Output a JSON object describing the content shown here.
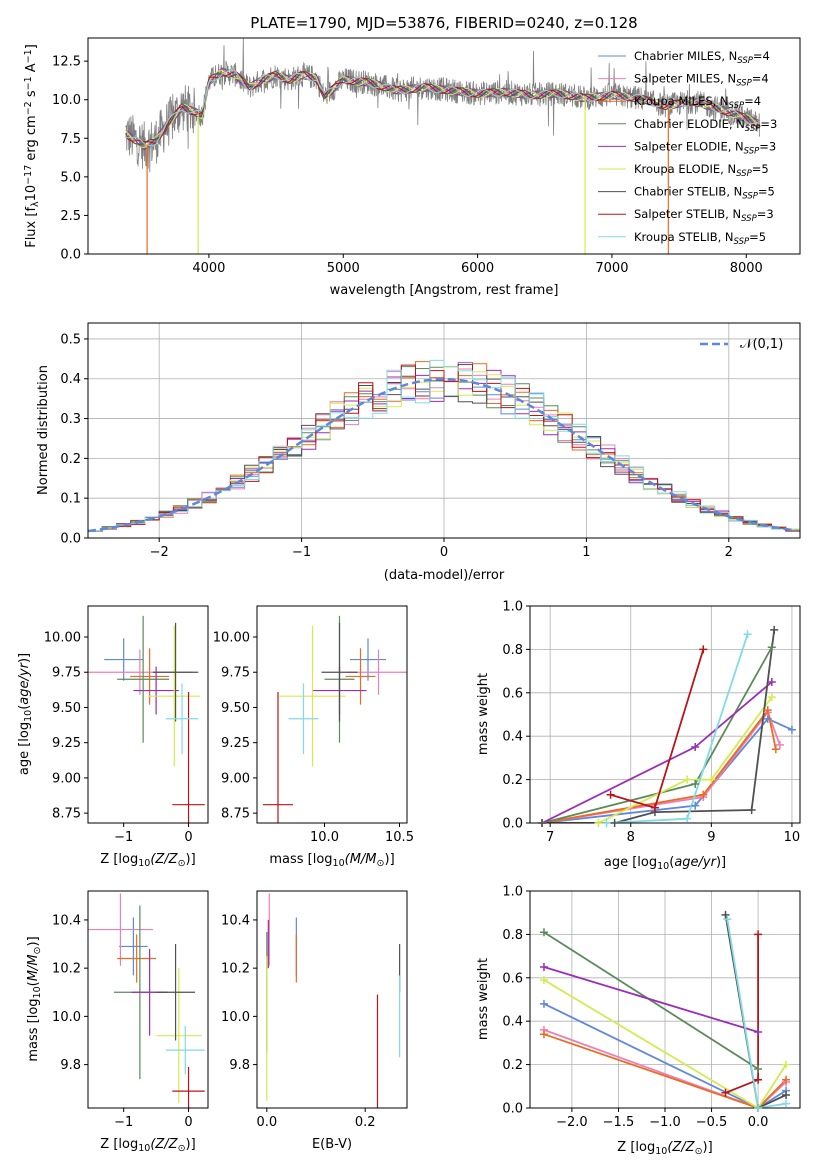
{
  "colors": {
    "chabrier_miles": "#5f87db",
    "salpeter_miles": "#ec7fb4",
    "kroupa_miles": "#ec6b22",
    "chabrier_elodie": "#5b8a5b",
    "salpeter_elodie": "#9b2db8",
    "kroupa_elodie": "#d4ea4f",
    "chabrier_stelib": "#505050",
    "salpeter_stelib": "#b8141a",
    "kroupa_stelib": "#80dbe4",
    "data": "#808080",
    "gauss": "#5f87db"
  },
  "chart_data": [
    {
      "id": "spectrum",
      "type": "line",
      "title": "PLATE=1790, MJD=53876, FIBERID=0240, z=0.128",
      "xlabel": "wavelength [Angstrom, rest frame]",
      "ylabel": "Flux [f_λ 10^-17 erg cm^-2 s^-1 A^-1]",
      "xlim": [
        3100,
        8400
      ],
      "ylim": [
        0,
        14
      ],
      "xticks": [
        4000,
        5000,
        6000,
        7000,
        8000
      ],
      "yticks": [
        0.0,
        2.5,
        5.0,
        7.5,
        10.0,
        12.5
      ],
      "ytick_labels": [
        "0.0",
        "2.5",
        "5.0",
        "7.5",
        "10.0",
        "12.5"
      ],
      "legend": "upper right",
      "legend_entries": [
        {
          "label": "Chabrier MILES, N",
          "sub": "SSP",
          "suffix": "=4",
          "key": "chabrier_miles"
        },
        {
          "label": "Salpeter MILES, N",
          "sub": "SSP",
          "suffix": "=4",
          "key": "salpeter_miles"
        },
        {
          "label": "Kroupa MILES, N",
          "sub": "SSP",
          "suffix": "=4",
          "key": "kroupa_miles"
        },
        {
          "label": "Chabrier ELODIE, N",
          "sub": "SSP",
          "suffix": "=3",
          "key": "chabrier_elodie"
        },
        {
          "label": "Salpeter ELODIE, N",
          "sub": "SSP",
          "suffix": "=3",
          "key": "salpeter_elodie"
        },
        {
          "label": "Kroupa ELODIE, N",
          "sub": "SSP",
          "suffix": "=5",
          "key": "kroupa_elodie"
        },
        {
          "label": "Chabrier STELIB, N",
          "sub": "SSP",
          "suffix": "=5",
          "key": "chabrier_stelib"
        },
        {
          "label": "Salpeter STELIB, N",
          "sub": "SSP",
          "suffix": "=3",
          "key": "salpeter_stelib"
        },
        {
          "label": "Kroupa STELIB, N",
          "sub": "SSP",
          "suffix": "=5",
          "key": "kroupa_stelib"
        }
      ],
      "continuum": {
        "x": [
          3380,
          3450,
          3520,
          3600,
          3700,
          3800,
          3900,
          3950,
          4000,
          4100,
          4200,
          4300,
          4400,
          4500,
          4600,
          4700,
          4800,
          4860,
          5000,
          5200,
          5400,
          5600,
          5800,
          6000,
          6200,
          6400,
          6600,
          6800,
          7000,
          7200,
          7400,
          7600,
          7800,
          8000,
          8100
        ],
        "y": [
          7.8,
          7.4,
          7.0,
          7.3,
          8.5,
          9.5,
          9.2,
          9.0,
          11.2,
          11.8,
          11.6,
          10.8,
          11.3,
          11.6,
          11.3,
          11.6,
          11.4,
          10.2,
          11.3,
          11.1,
          10.6,
          10.8,
          10.6,
          10.4,
          10.5,
          10.3,
          10.4,
          10.1,
          10.3,
          10.1,
          9.6,
          9.9,
          9.4,
          8.8,
          8.4
        ]
      },
      "drops": [
        {
          "x": 3540,
          "to": 0.0,
          "key": "kroupa_miles"
        },
        {
          "x": 3920,
          "to": 0.0,
          "key": "kroupa_elodie"
        },
        {
          "x": 6800,
          "to": 0.0,
          "key": "kroupa_elodie"
        },
        {
          "x": 7420,
          "to": 0.0,
          "key": "kroupa_miles"
        }
      ]
    },
    {
      "id": "residuals",
      "type": "histogram",
      "xlabel": "(data-model)/error",
      "ylabel": "Normed distribution",
      "xlim": [
        -2.5,
        2.5
      ],
      "ylim": [
        0,
        0.54
      ],
      "xticks": [
        -2,
        -1,
        0,
        1,
        2
      ],
      "yticks": [
        0.0,
        0.1,
        0.2,
        0.3,
        0.4,
        0.5
      ],
      "ytick_labels": [
        "0.0",
        "0.1",
        "0.2",
        "0.3",
        "0.4",
        "0.5"
      ],
      "gauss_label": "𝒩(0,1)",
      "legend": "upper right",
      "bin_width": 0.1
    },
    {
      "id": "age_vs_z",
      "type": "errorbar",
      "xlabel_main": "Z [log",
      "xlabel_sub": "10",
      "xlabel_rest": "(Z/Z",
      "xlabel_end": ")]",
      "ylabel": "age  [log10(age/yr)]",
      "xlim": [
        -1.55,
        0.3
      ],
      "ylim": [
        8.68,
        10.22
      ],
      "xticks": [
        -1,
        0
      ],
      "yticks": [
        8.75,
        9.0,
        9.25,
        9.5,
        9.75,
        10.0
      ],
      "ytick_labels": [
        "8.75",
        "9.00",
        "9.25",
        "9.50",
        "9.75",
        "10.00"
      ],
      "points": [
        {
          "key": "chabrier_miles",
          "x": -1.0,
          "xerr": 0.3,
          "y": 9.84,
          "yerr": 0.15
        },
        {
          "key": "salpeter_miles",
          "x": -0.75,
          "xerr": 0.8,
          "y": 9.75,
          "yerr": 0.16
        },
        {
          "key": "kroupa_miles",
          "x": -0.6,
          "xerr": 0.3,
          "y": 9.72,
          "yerr": 0.2
        },
        {
          "key": "chabrier_elodie",
          "x": -0.7,
          "xerr": 0.4,
          "y": 9.7,
          "yerr": 0.45
        },
        {
          "key": "salpeter_elodie",
          "x": -0.5,
          "xerr": 0.35,
          "y": 9.62,
          "yerr": 0.17
        },
        {
          "key": "kroupa_elodie",
          "x": -0.22,
          "xerr": 0.4,
          "y": 9.58,
          "yerr": 0.5
        },
        {
          "key": "chabrier_stelib",
          "x": -0.2,
          "xerr": 0.35,
          "y": 9.75,
          "yerr": 0.35
        },
        {
          "key": "salpeter_stelib",
          "x": 0.0,
          "xerr": 0.25,
          "y": 8.81,
          "yerr": 0.8
        },
        {
          "key": "kroupa_stelib",
          "x": -0.1,
          "xerr": 0.25,
          "y": 9.42,
          "yerr": 0.25
        }
      ]
    },
    {
      "id": "age_vs_mass",
      "type": "errorbar",
      "xlabel_main": "mass [log",
      "xlabel_sub": "10",
      "xlabel_rest": "(M/M",
      "xlabel_end": ")]",
      "xlim": [
        9.55,
        10.55
      ],
      "ylim": [
        8.68,
        10.22
      ],
      "xticks": [
        10.0,
        10.5
      ],
      "xtick_labels": [
        "10.0",
        "10.5"
      ],
      "yticks": [
        8.75,
        9.0,
        9.25,
        9.5,
        9.75,
        10.0
      ],
      "ytick_labels": [
        "8.75",
        "9.00",
        "9.25",
        "9.50",
        "9.75",
        "10.00"
      ],
      "points": [
        {
          "key": "chabrier_miles",
          "x": 10.29,
          "xerr": 0.12,
          "y": 9.84,
          "yerr": 0.15
        },
        {
          "key": "salpeter_miles",
          "x": 10.36,
          "xerr": 0.2,
          "y": 9.75,
          "yerr": 0.16
        },
        {
          "key": "kroupa_miles",
          "x": 10.24,
          "xerr": 0.1,
          "y": 9.72,
          "yerr": 0.2
        },
        {
          "key": "chabrier_elodie",
          "x": 10.1,
          "xerr": 0.1,
          "y": 9.7,
          "yerr": 0.45
        },
        {
          "key": "salpeter_elodie",
          "x": 10.1,
          "xerr": 0.18,
          "y": 9.62,
          "yerr": 0.17
        },
        {
          "key": "kroupa_elodie",
          "x": 9.92,
          "xerr": 0.22,
          "y": 9.58,
          "yerr": 0.5
        },
        {
          "key": "chabrier_stelib",
          "x": 10.1,
          "xerr": 0.12,
          "y": 9.75,
          "yerr": 0.35
        },
        {
          "key": "salpeter_stelib",
          "x": 9.69,
          "xerr": 0.1,
          "y": 8.81,
          "yerr": 0.8
        },
        {
          "key": "kroupa_stelib",
          "x": 9.86,
          "xerr": 0.1,
          "y": 9.42,
          "yerr": 0.25
        }
      ]
    },
    {
      "id": "weight_vs_age",
      "type": "line",
      "xlabel": "age  [log10(age/yr)]",
      "ylabel": "mass weight",
      "xlim": [
        6.75,
        10.1
      ],
      "ylim": [
        0,
        1.0
      ],
      "xticks": [
        7,
        8,
        9,
        10
      ],
      "yticks": [
        0.0,
        0.2,
        0.4,
        0.6,
        0.8,
        1.0
      ],
      "ytick_labels": [
        "0.0",
        "0.2",
        "0.4",
        "0.6",
        "0.8",
        "1.0"
      ],
      "series": [
        {
          "key": "chabrier_miles",
          "x": [
            6.9,
            8.8,
            9.7,
            10.0
          ],
          "y": [
            0.0,
            0.08,
            0.48,
            0.43
          ]
        },
        {
          "key": "salpeter_miles",
          "x": [
            6.9,
            8.9,
            9.7,
            9.85
          ],
          "y": [
            0.0,
            0.12,
            0.51,
            0.36
          ]
        },
        {
          "key": "kroupa_miles",
          "x": [
            6.9,
            8.9,
            9.7,
            9.8
          ],
          "y": [
            0.0,
            0.13,
            0.52,
            0.34
          ]
        },
        {
          "key": "chabrier_elodie",
          "x": [
            6.9,
            8.8,
            9.75
          ],
          "y": [
            0.0,
            0.18,
            0.81
          ]
        },
        {
          "key": "salpeter_elodie",
          "x": [
            6.9,
            8.8,
            9.75
          ],
          "y": [
            0.0,
            0.35,
            0.65
          ]
        },
        {
          "key": "kroupa_elodie",
          "x": [
            6.9,
            7.6,
            8.7,
            9.0,
            9.75
          ],
          "y": [
            0.0,
            0.0,
            0.2,
            0.2,
            0.58
          ]
        },
        {
          "key": "chabrier_stelib",
          "x": [
            6.9,
            7.8,
            8.3,
            9.5,
            9.78
          ],
          "y": [
            0.0,
            0.0,
            0.05,
            0.06,
            0.89
          ]
        },
        {
          "key": "salpeter_stelib",
          "x": [
            7.75,
            8.3,
            8.9
          ],
          "y": [
            0.13,
            0.07,
            0.8
          ]
        },
        {
          "key": "kroupa_stelib",
          "x": [
            7.7,
            8.7,
            9.45
          ],
          "y": [
            0.0,
            0.02,
            0.87
          ]
        }
      ]
    },
    {
      "id": "mass_vs_z",
      "type": "errorbar",
      "xlabel_main": "Z [log",
      "xlabel_sub": "10",
      "xlabel_rest": "(Z/Z",
      "xlabel_end": ")]",
      "ylabel": "mass [log10(M/M⊙)]",
      "xlim": [
        -1.55,
        0.3
      ],
      "ylim": [
        9.62,
        10.52
      ],
      "xticks": [
        -1,
        0
      ],
      "yticks": [
        9.8,
        10.0,
        10.2,
        10.4
      ],
      "ytick_labels": [
        "9.8",
        "10.0",
        "10.2",
        "10.4"
      ],
      "points": [
        {
          "key": "chabrier_miles",
          "x": -0.85,
          "xerr": 0.22,
          "y": 10.29,
          "yerr": 0.12
        },
        {
          "key": "salpeter_miles",
          "x": -1.05,
          "xerr": 0.5,
          "y": 10.36,
          "yerr": 0.15
        },
        {
          "key": "kroupa_miles",
          "x": -0.8,
          "xerr": 0.3,
          "y": 10.24,
          "yerr": 0.1
        },
        {
          "key": "chabrier_elodie",
          "x": -0.75,
          "xerr": 0.4,
          "y": 10.1,
          "yerr": 0.36
        },
        {
          "key": "salpeter_elodie",
          "x": -0.6,
          "xerr": 0.28,
          "y": 10.1,
          "yerr": 0.18
        },
        {
          "key": "kroupa_elodie",
          "x": -0.15,
          "xerr": 0.35,
          "y": 9.92,
          "yerr": 0.28
        },
        {
          "key": "chabrier_stelib",
          "x": -0.2,
          "xerr": 0.3,
          "y": 10.1,
          "yerr": 0.2
        },
        {
          "key": "salpeter_stelib",
          "x": 0.0,
          "xerr": 0.25,
          "y": 9.69,
          "yerr": 0.1
        },
        {
          "key": "kroupa_stelib",
          "x": -0.05,
          "xerr": 0.3,
          "y": 9.86,
          "yerr": 0.1
        }
      ]
    },
    {
      "id": "mass_vs_ebv",
      "type": "errorbar",
      "xlabel": "E(B-V)",
      "xlim": [
        -0.02,
        0.285
      ],
      "ylim": [
        9.62,
        10.52
      ],
      "xticks": [
        0.0,
        0.2
      ],
      "xtick_labels": [
        "0.0",
        "0.2"
      ],
      "yticks": [
        9.8,
        10.0,
        10.2,
        10.4
      ],
      "ytick_labels": [
        "9.8",
        "10.0",
        "10.2",
        "10.4"
      ],
      "points": [
        {
          "key": "chabrier_miles",
          "x": 0.06,
          "xerr": 0,
          "y": 10.29,
          "yerr": 0.12
        },
        {
          "key": "salpeter_miles",
          "x": 0.005,
          "xerr": 0,
          "y": 10.36,
          "yerr": 0.15
        },
        {
          "key": "kroupa_miles",
          "x": 0.06,
          "xerr": 0,
          "y": 10.24,
          "yerr": 0.1
        },
        {
          "key": "chabrier_elodie",
          "x": 0.0,
          "xerr": 0,
          "y": 10.1,
          "yerr": 0.25
        },
        {
          "key": "salpeter_elodie",
          "x": 0.003,
          "xerr": 0,
          "y": 10.3,
          "yerr": 0.1
        },
        {
          "key": "kroupa_elodie",
          "x": 0.0,
          "xerr": 0,
          "y": 9.95,
          "yerr": 0.3
        },
        {
          "key": "chabrier_stelib",
          "x": 0.27,
          "xerr": 0,
          "y": 10.2,
          "yerr": 0.1
        },
        {
          "key": "salpeter_stelib",
          "x": 0.225,
          "xerr": 0,
          "y": 9.79,
          "yerr": 0.3
        },
        {
          "key": "kroupa_stelib",
          "x": 0.27,
          "xerr": 0,
          "y": 10.0,
          "yerr": 0.17
        }
      ]
    },
    {
      "id": "weight_vs_z",
      "type": "line",
      "xlabel_main": "Z [log",
      "xlabel_sub": "10",
      "xlabel_rest": "(Z/Z",
      "xlabel_end": ")]",
      "ylabel": "mass weight",
      "xlim": [
        -2.45,
        0.45
      ],
      "ylim": [
        0,
        1.0
      ],
      "xticks": [
        -2.0,
        -1.5,
        -1.0,
        -0.5,
        0.0
      ],
      "xtick_labels": [
        "−2.0",
        "−1.5",
        "−1.0",
        "−0.5",
        "0.0"
      ],
      "yticks": [
        0.0,
        0.2,
        0.4,
        0.6,
        0.8,
        1.0
      ],
      "ytick_labels": [
        "0.0",
        "0.2",
        "0.4",
        "0.6",
        "0.8",
        "1.0"
      ],
      "series": [
        {
          "key": "chabrier_miles",
          "x": [
            -2.3,
            0.0,
            0.3
          ],
          "y": [
            0.48,
            0.0,
            0.08
          ]
        },
        {
          "key": "salpeter_miles",
          "x": [
            -2.3,
            0.0,
            0.3
          ],
          "y": [
            0.36,
            0.0,
            0.12
          ]
        },
        {
          "key": "kroupa_miles",
          "x": [
            -2.3,
            0.0,
            0.3
          ],
          "y": [
            0.34,
            0.0,
            0.13
          ]
        },
        {
          "key": "chabrier_elodie",
          "x": [
            -2.3,
            0.0
          ],
          "y": [
            0.81,
            0.18
          ]
        },
        {
          "key": "salpeter_elodie",
          "x": [
            -2.3,
            0.0
          ],
          "y": [
            0.65,
            0.35
          ]
        },
        {
          "key": "kroupa_elodie",
          "x": [
            -2.3,
            0.0,
            0.3
          ],
          "y": [
            0.59,
            0.0,
            0.2
          ]
        },
        {
          "key": "chabrier_stelib",
          "x": [
            -0.35,
            0.0,
            0.3
          ],
          "y": [
            0.89,
            0.0,
            0.06
          ]
        },
        {
          "key": "salpeter_stelib",
          "x": [
            -0.35,
            0.0,
            0.0
          ],
          "y": [
            0.07,
            0.13,
            0.8
          ]
        },
        {
          "key": "kroupa_stelib",
          "x": [
            -0.33,
            0.0,
            0.3
          ],
          "y": [
            0.87,
            0.0,
            0.02
          ]
        }
      ]
    }
  ]
}
